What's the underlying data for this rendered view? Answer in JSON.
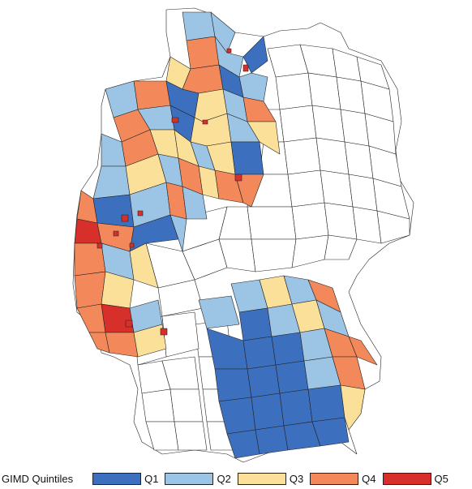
{
  "legend": {
    "title": "GIMD Quintiles",
    "items": [
      {
        "label": "Q1",
        "color": "#3d6fbf"
      },
      {
        "label": "Q2",
        "color": "#9cc4e4"
      },
      {
        "label": "Q3",
        "color": "#fbe09a"
      },
      {
        "label": "Q4",
        "color": "#f3895a"
      },
      {
        "label": "Q5",
        "color": "#d7302a"
      }
    ]
  },
  "map": {
    "no_data_color": "#ffffff",
    "border_color": "#222222"
  }
}
